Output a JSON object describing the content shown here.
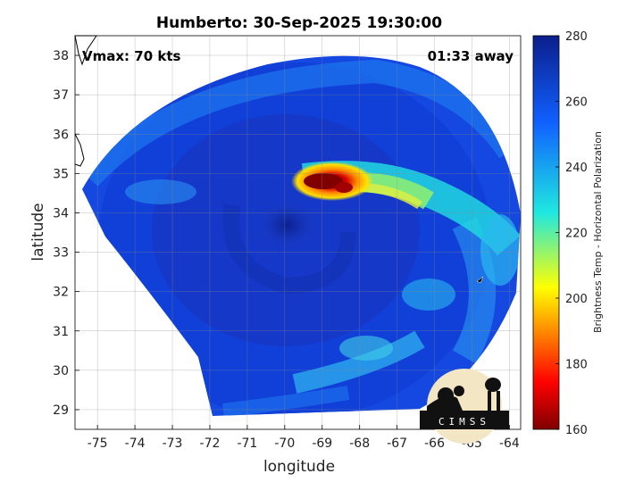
{
  "chart_data": {
    "type": "heatmap",
    "title": "Humberto: 30-Sep-2025 19:30:00",
    "xlabel": "longitude",
    "ylabel": "latitude",
    "xlim": [
      -75.6,
      -63.7
    ],
    "ylim": [
      28.5,
      38.5
    ],
    "xticks": [
      -75,
      -74,
      -73,
      -72,
      -71,
      -70,
      -69,
      -68,
      -67,
      -66,
      -65,
      -64
    ],
    "yticks": [
      29,
      30,
      31,
      32,
      33,
      34,
      35,
      36,
      37,
      38
    ],
    "grid": true,
    "colorbar": {
      "label": "Brightness Temp - Horizontal Polarization",
      "range": [
        160,
        280
      ],
      "ticks": [
        160,
        180,
        200,
        220,
        240,
        260,
        280
      ],
      "colormap": [
        "#7f0000",
        "#ff0000",
        "#ffff00",
        "#00ffff",
        "#0000ff",
        "#00008f"
      ]
    },
    "annotations": {
      "vmax": "Vmax: 70 kts",
      "time_offset": "01:33 away"
    },
    "storm_center": {
      "lon": -70.1,
      "lat": 33.5
    },
    "coldest_region": {
      "lon": -68.9,
      "lat": 34.9,
      "value": 165
    }
  },
  "logo": {
    "text": "CIMSS"
  }
}
